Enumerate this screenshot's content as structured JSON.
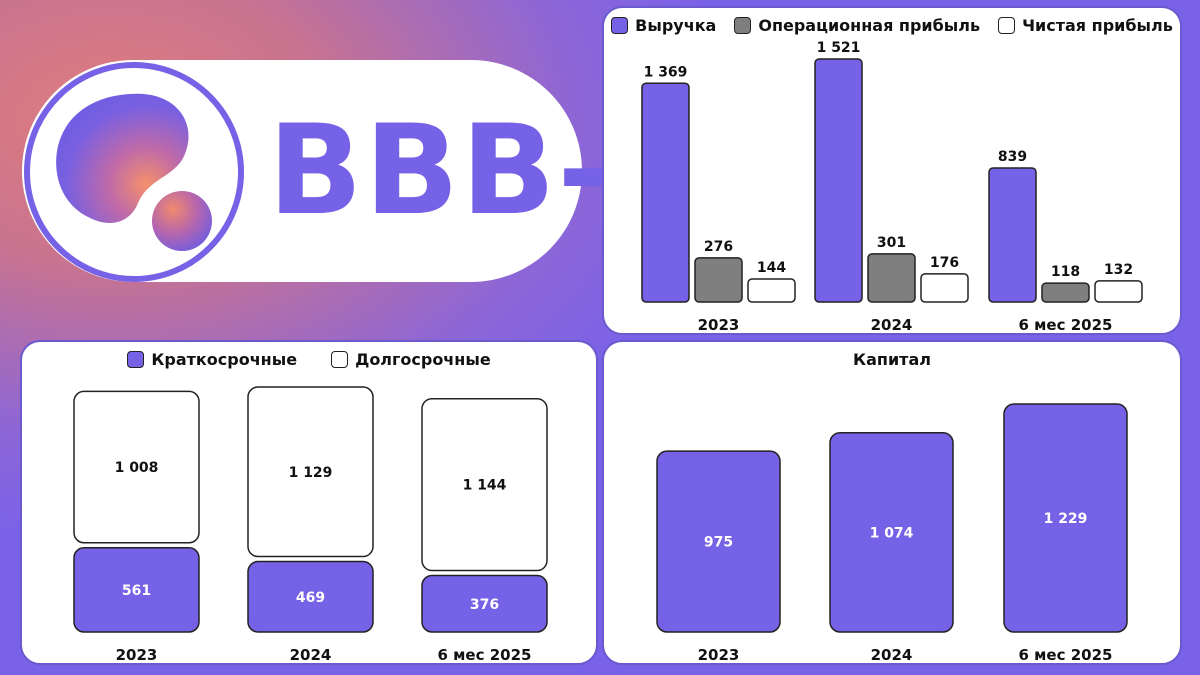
{
  "badge": {
    "rating": "BBB-"
  },
  "colors": {
    "primary": "#7562e6",
    "gray": "#7f7f7f",
    "white": "#ffffff",
    "outline": "#222222"
  },
  "chart_data": [
    {
      "type": "bar",
      "categories": [
        "2023",
        "2024",
        "6 мес 2025"
      ],
      "series": [
        {
          "name": "Выручка",
          "values": [
            1369,
            1521,
            839
          ],
          "labels": [
            "1 369",
            "1 521",
            "839"
          ],
          "color": "#7562e6"
        },
        {
          "name": "Операционная прибыль",
          "values": [
            276,
            301,
            118
          ],
          "labels": [
            "276",
            "301",
            "118"
          ],
          "color": "#7f7f7f"
        },
        {
          "name": "Чистая прибыль",
          "values": [
            144,
            176,
            132
          ],
          "labels": [
            "144",
            "176",
            "132"
          ],
          "color": "#ffffff"
        }
      ],
      "ylim": [
        0,
        1521
      ],
      "legend": "top",
      "grid": false
    },
    {
      "type": "bar",
      "stacked": true,
      "categories": [
        "2023",
        "2024",
        "6 мес 2025"
      ],
      "series": [
        {
          "name": "Краткосрочные",
          "values": [
            561,
            469,
            376
          ],
          "labels": [
            "561",
            "469",
            "376"
          ],
          "color": "#7562e6"
        },
        {
          "name": "Долгосрочные",
          "values": [
            1008,
            1129,
            1144
          ],
          "labels": [
            "1 008",
            "1 129",
            "1 144"
          ],
          "color": "#ffffff"
        }
      ],
      "legend": "top",
      "grid": false
    },
    {
      "type": "bar",
      "title": "Капитал",
      "categories": [
        "2023",
        "2024",
        "6 мес 2025"
      ],
      "series": [
        {
          "values": [
            975,
            1074,
            1229
          ],
          "labels": [
            "975",
            "1 074",
            "1 229"
          ],
          "color": "#7562e6"
        }
      ],
      "legend": "none",
      "grid": false
    }
  ]
}
